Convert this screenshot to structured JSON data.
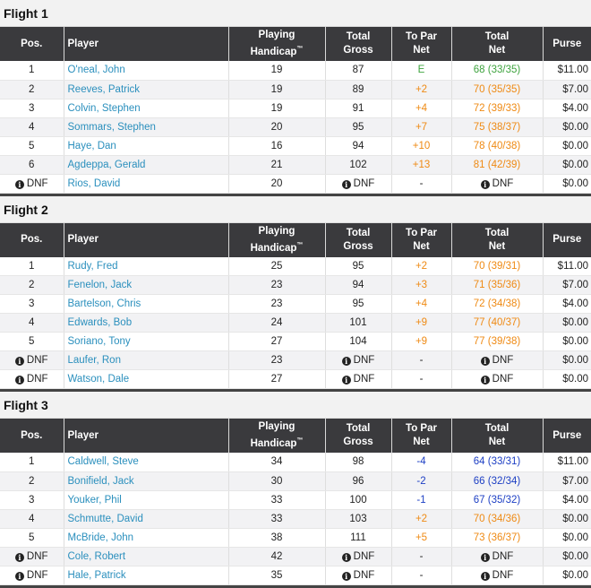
{
  "columns": {
    "pos": "Pos.",
    "player": "Player",
    "handicap_line1": "Playing",
    "handicap_line2": "Handicap",
    "handicap_mark": "™",
    "gross_line1": "Total",
    "gross_line2": "Gross",
    "topar_line1": "To Par",
    "topar_line2": "Net",
    "net_line1": "Total",
    "net_line2": "Net",
    "purse": "Purse"
  },
  "icons": {
    "info": "info-circle-icon"
  },
  "colors": {
    "even": "#3ea33e",
    "over": "#ef8a14",
    "under": "#1d3fc4",
    "player_link": "#2a8fbd",
    "header_bg": "#3a3a3d"
  },
  "flights": [
    {
      "title": "Flight 1",
      "rows": [
        {
          "pos": "1",
          "player": "O'neal, John",
          "handicap": "19",
          "gross": "87",
          "to_par": "E",
          "net": "68 (33/35)",
          "purse": "$11.00",
          "tone": "even"
        },
        {
          "pos": "2",
          "player": "Reeves, Patrick",
          "handicap": "19",
          "gross": "89",
          "to_par": "+2",
          "net": "70 (35/35)",
          "purse": "$7.00",
          "tone": "over"
        },
        {
          "pos": "3",
          "player": "Colvin, Stephen",
          "handicap": "19",
          "gross": "91",
          "to_par": "+4",
          "net": "72 (39/33)",
          "purse": "$4.00",
          "tone": "over"
        },
        {
          "pos": "4",
          "player": "Sommars, Stephen",
          "handicap": "20",
          "gross": "95",
          "to_par": "+7",
          "net": "75 (38/37)",
          "purse": "$0.00",
          "tone": "over"
        },
        {
          "pos": "5",
          "player": "Haye, Dan",
          "handicap": "16",
          "gross": "94",
          "to_par": "+10",
          "net": "78 (40/38)",
          "purse": "$0.00",
          "tone": "over"
        },
        {
          "pos": "6",
          "player": "Agdeppa, Gerald",
          "handicap": "21",
          "gross": "102",
          "to_par": "+13",
          "net": "81 (42/39)",
          "purse": "$0.00",
          "tone": "over"
        },
        {
          "pos": "DNF",
          "player": "Rios, David",
          "handicap": "20",
          "gross": "DNF",
          "to_par": "-",
          "net": "DNF",
          "purse": "$0.00",
          "tone": "none"
        }
      ]
    },
    {
      "title": "Flight 2",
      "rows": [
        {
          "pos": "1",
          "player": "Rudy, Fred",
          "handicap": "25",
          "gross": "95",
          "to_par": "+2",
          "net": "70 (39/31)",
          "purse": "$11.00",
          "tone": "over"
        },
        {
          "pos": "2",
          "player": "Fenelon, Jack",
          "handicap": "23",
          "gross": "94",
          "to_par": "+3",
          "net": "71 (35/36)",
          "purse": "$7.00",
          "tone": "over"
        },
        {
          "pos": "3",
          "player": "Bartelson, Chris",
          "handicap": "23",
          "gross": "95",
          "to_par": "+4",
          "net": "72 (34/38)",
          "purse": "$4.00",
          "tone": "over"
        },
        {
          "pos": "4",
          "player": "Edwards, Bob",
          "handicap": "24",
          "gross": "101",
          "to_par": "+9",
          "net": "77 (40/37)",
          "purse": "$0.00",
          "tone": "over"
        },
        {
          "pos": "5",
          "player": "Soriano, Tony",
          "handicap": "27",
          "gross": "104",
          "to_par": "+9",
          "net": "77 (39/38)",
          "purse": "$0.00",
          "tone": "over"
        },
        {
          "pos": "DNF",
          "player": "Laufer, Ron",
          "handicap": "23",
          "gross": "DNF",
          "to_par": "-",
          "net": "DNF",
          "purse": "$0.00",
          "tone": "none"
        },
        {
          "pos": "DNF",
          "player": "Watson, Dale",
          "handicap": "27",
          "gross": "DNF",
          "to_par": "-",
          "net": "DNF",
          "purse": "$0.00",
          "tone": "none"
        }
      ]
    },
    {
      "title": "Flight 3",
      "rows": [
        {
          "pos": "1",
          "player": "Caldwell, Steve",
          "handicap": "34",
          "gross": "98",
          "to_par": "-4",
          "net": "64 (33/31)",
          "purse": "$11.00",
          "tone": "under"
        },
        {
          "pos": "2",
          "player": "Bonifield, Jack",
          "handicap": "30",
          "gross": "96",
          "to_par": "-2",
          "net": "66 (32/34)",
          "purse": "$7.00",
          "tone": "under"
        },
        {
          "pos": "3",
          "player": "Youker, Phil",
          "handicap": "33",
          "gross": "100",
          "to_par": "-1",
          "net": "67 (35/32)",
          "purse": "$4.00",
          "tone": "under"
        },
        {
          "pos": "4",
          "player": "Schmutte, David",
          "handicap": "33",
          "gross": "103",
          "to_par": "+2",
          "net": "70 (34/36)",
          "purse": "$0.00",
          "tone": "over"
        },
        {
          "pos": "5",
          "player": "McBride, John",
          "handicap": "38",
          "gross": "111",
          "to_par": "+5",
          "net": "73 (36/37)",
          "purse": "$0.00",
          "tone": "over"
        },
        {
          "pos": "DNF",
          "player": "Cole, Robert",
          "handicap": "42",
          "gross": "DNF",
          "to_par": "-",
          "net": "DNF",
          "purse": "$0.00",
          "tone": "none"
        },
        {
          "pos": "DNF",
          "player": "Hale, Patrick",
          "handicap": "35",
          "gross": "DNF",
          "to_par": "-",
          "net": "DNF",
          "purse": "$0.00",
          "tone": "none"
        }
      ]
    }
  ]
}
